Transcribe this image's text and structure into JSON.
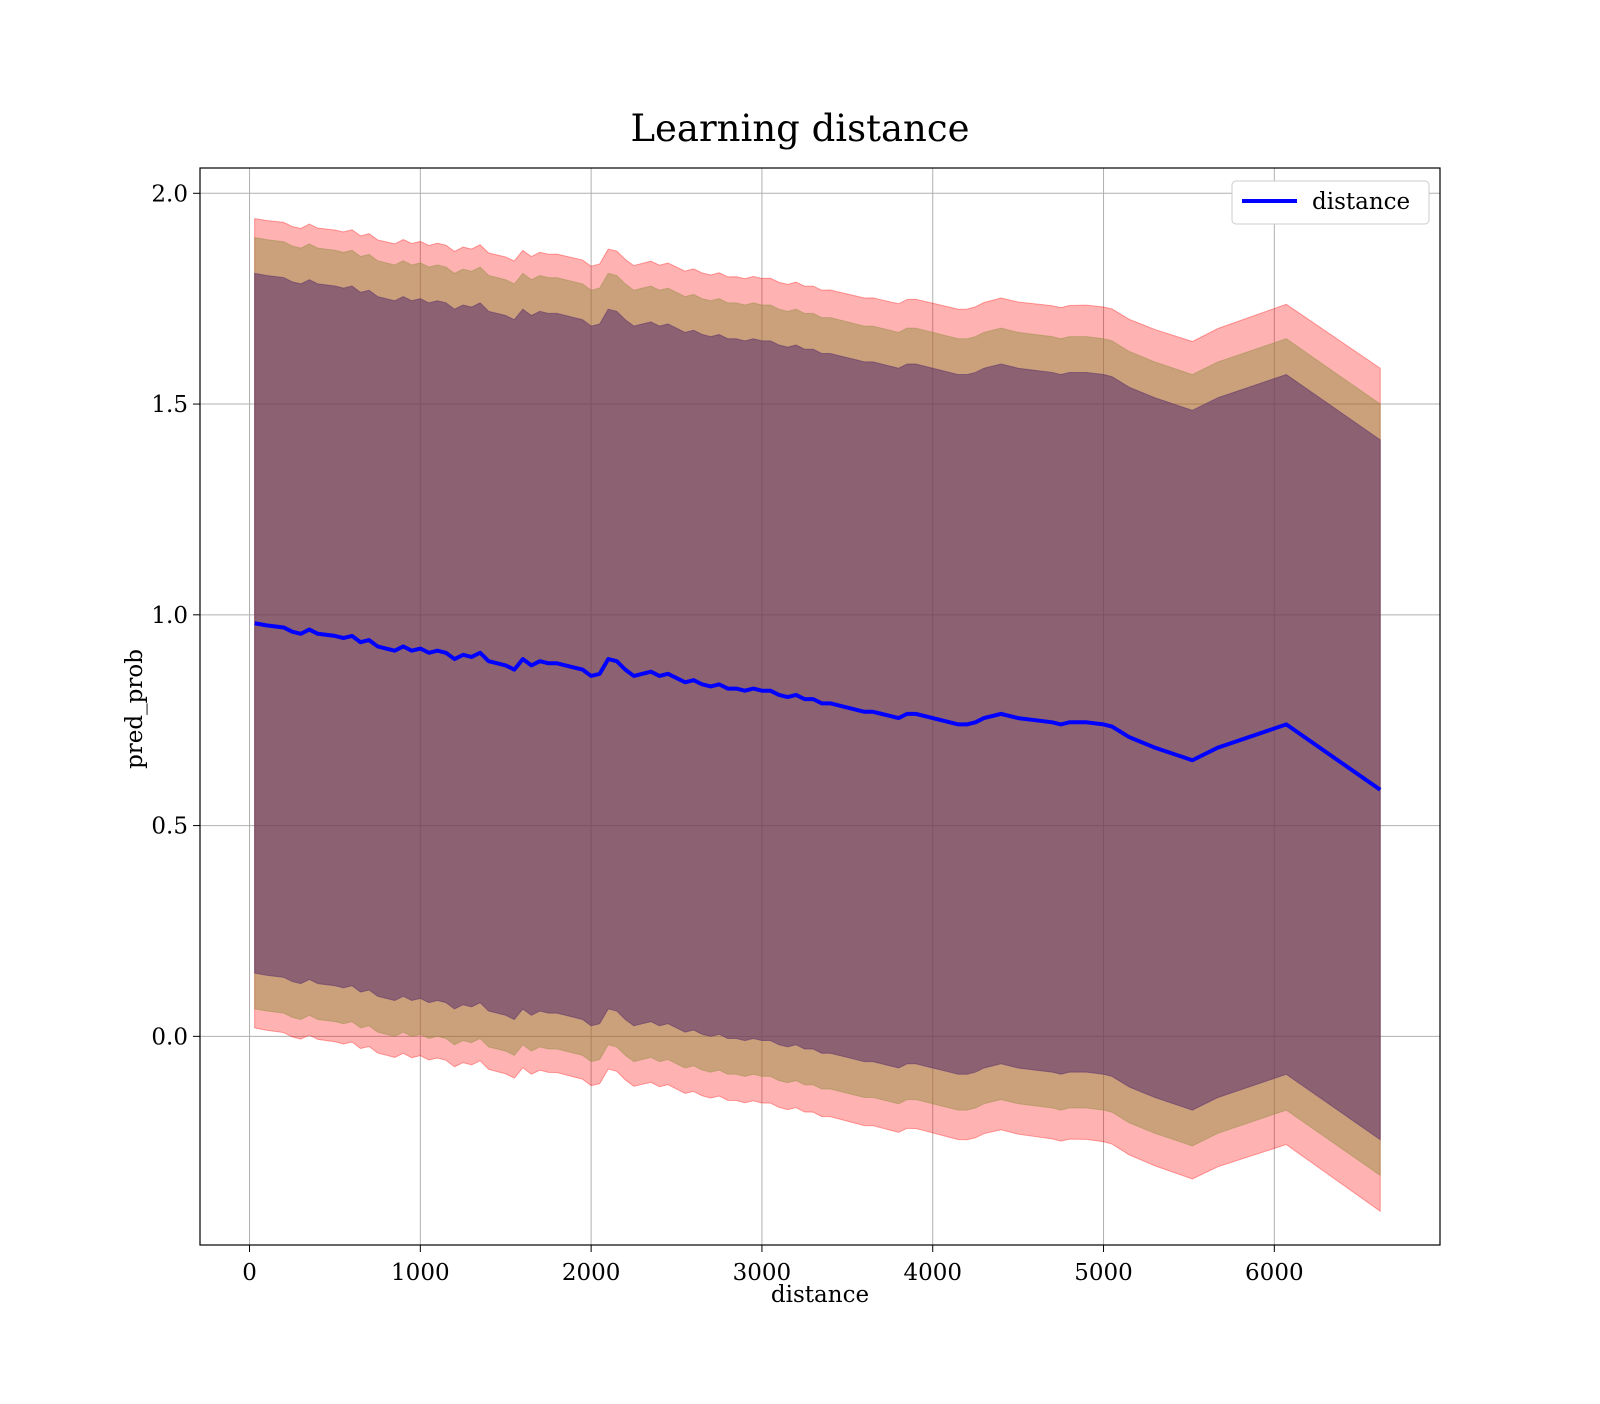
{
  "chart_data": {
    "type": "line",
    "title": "Learning distance",
    "xlabel": "distance",
    "ylabel": "pred_prob",
    "xlim": [
      -290,
      6970
    ],
    "ylim": [
      -0.495,
      2.06
    ],
    "xticks": [
      0,
      1000,
      2000,
      3000,
      4000,
      5000,
      6000
    ],
    "xtick_labels": [
      "0",
      "1000",
      "2000",
      "3000",
      "4000",
      "5000",
      "6000"
    ],
    "yticks": [
      0.0,
      0.5,
      1.0,
      1.5,
      2.0
    ],
    "ytick_labels": [
      "0.0",
      "0.5",
      "1.0",
      "1.5",
      "2.0"
    ],
    "grid": true,
    "legend": {
      "position": "top-right",
      "entries": [
        "distance"
      ]
    },
    "colors": {
      "line": "#0000ff",
      "outer_band": "#ff0000",
      "middle_band": "#8b8b3a",
      "inner_band": "#5a2d6a"
    },
    "series": [
      {
        "name": "distance",
        "x": [
          30,
          100,
          200,
          250,
          300,
          350,
          400,
          500,
          550,
          600,
          650,
          700,
          750,
          800,
          850,
          900,
          950,
          1000,
          1050,
          1100,
          1150,
          1200,
          1250,
          1300,
          1350,
          1400,
          1450,
          1500,
          1550,
          1600,
          1650,
          1700,
          1750,
          1800,
          1850,
          1900,
          1950,
          2000,
          2050,
          2100,
          2150,
          2200,
          2250,
          2300,
          2350,
          2400,
          2450,
          2500,
          2550,
          2600,
          2650,
          2700,
          2750,
          2800,
          2850,
          2900,
          2950,
          3000,
          3050,
          3100,
          3150,
          3200,
          3250,
          3300,
          3350,
          3400,
          3450,
          3500,
          3550,
          3600,
          3650,
          3700,
          3750,
          3800,
          3850,
          3900,
          3950,
          4000,
          4050,
          4100,
          4150,
          4200,
          4250,
          4300,
          4400,
          4500,
          4600,
          4700,
          4750,
          4800,
          4900,
          5000,
          5050,
          5150,
          5300,
          5520,
          5670,
          6070,
          6620
        ],
        "y": [
          0.98,
          0.975,
          0.97,
          0.96,
          0.955,
          0.965,
          0.955,
          0.95,
          0.945,
          0.95,
          0.935,
          0.94,
          0.925,
          0.92,
          0.915,
          0.925,
          0.915,
          0.92,
          0.91,
          0.915,
          0.91,
          0.895,
          0.905,
          0.9,
          0.91,
          0.89,
          0.885,
          0.88,
          0.87,
          0.895,
          0.88,
          0.89,
          0.885,
          0.885,
          0.88,
          0.875,
          0.87,
          0.855,
          0.86,
          0.895,
          0.89,
          0.87,
          0.855,
          0.86,
          0.865,
          0.855,
          0.86,
          0.85,
          0.84,
          0.845,
          0.835,
          0.83,
          0.835,
          0.825,
          0.825,
          0.82,
          0.825,
          0.82,
          0.82,
          0.81,
          0.805,
          0.81,
          0.8,
          0.8,
          0.79,
          0.79,
          0.785,
          0.78,
          0.775,
          0.77,
          0.77,
          0.765,
          0.76,
          0.755,
          0.765,
          0.765,
          0.76,
          0.755,
          0.75,
          0.745,
          0.74,
          0.74,
          0.745,
          0.755,
          0.765,
          0.755,
          0.75,
          0.745,
          0.74,
          0.745,
          0.745,
          0.74,
          0.735,
          0.71,
          0.685,
          0.655,
          0.685,
          0.74,
          0.585
        ],
        "outer_band_halfwidth": 0.96,
        "middle_band_halfwidth": 0.915,
        "inner_band_halfwidth": 0.83,
        "outer_band_growth_end": 0.21
      }
    ]
  }
}
